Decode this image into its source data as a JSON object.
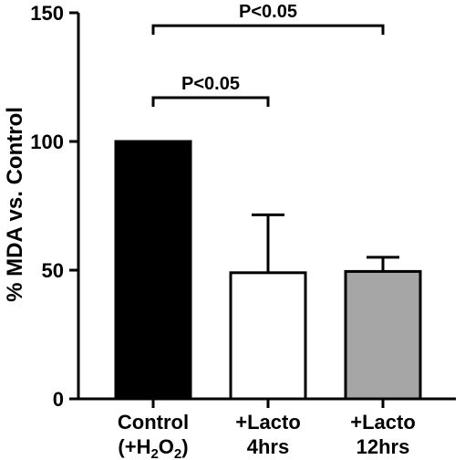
{
  "chart_data": {
    "type": "bar",
    "ylabel": "% MDA vs. Control",
    "ylim": [
      0,
      150
    ],
    "yticks": [
      "0",
      "50",
      "100",
      "150"
    ],
    "categories": [
      {
        "line1": "Control",
        "line2_parts": [
          "(+H",
          "2",
          "O",
          "2",
          ")"
        ]
      },
      {
        "line1": "+Lacto",
        "line2_parts": [
          "4hrs"
        ]
      },
      {
        "line1": "+Lacto",
        "line2_parts": [
          "12hrs"
        ]
      }
    ],
    "values": [
      100,
      49,
      49.5
    ],
    "error_upper": [
      null,
      71.5,
      55
    ],
    "bar_colors": [
      "#000000",
      "#ffffff",
      "#a6a6a6"
    ],
    "significance": [
      {
        "from": 0,
        "to": 1,
        "label": "P<0.05",
        "y": 117
      },
      {
        "from": 0,
        "to": 2,
        "label": "P<0.05",
        "y": 145
      }
    ],
    "grid": false
  }
}
